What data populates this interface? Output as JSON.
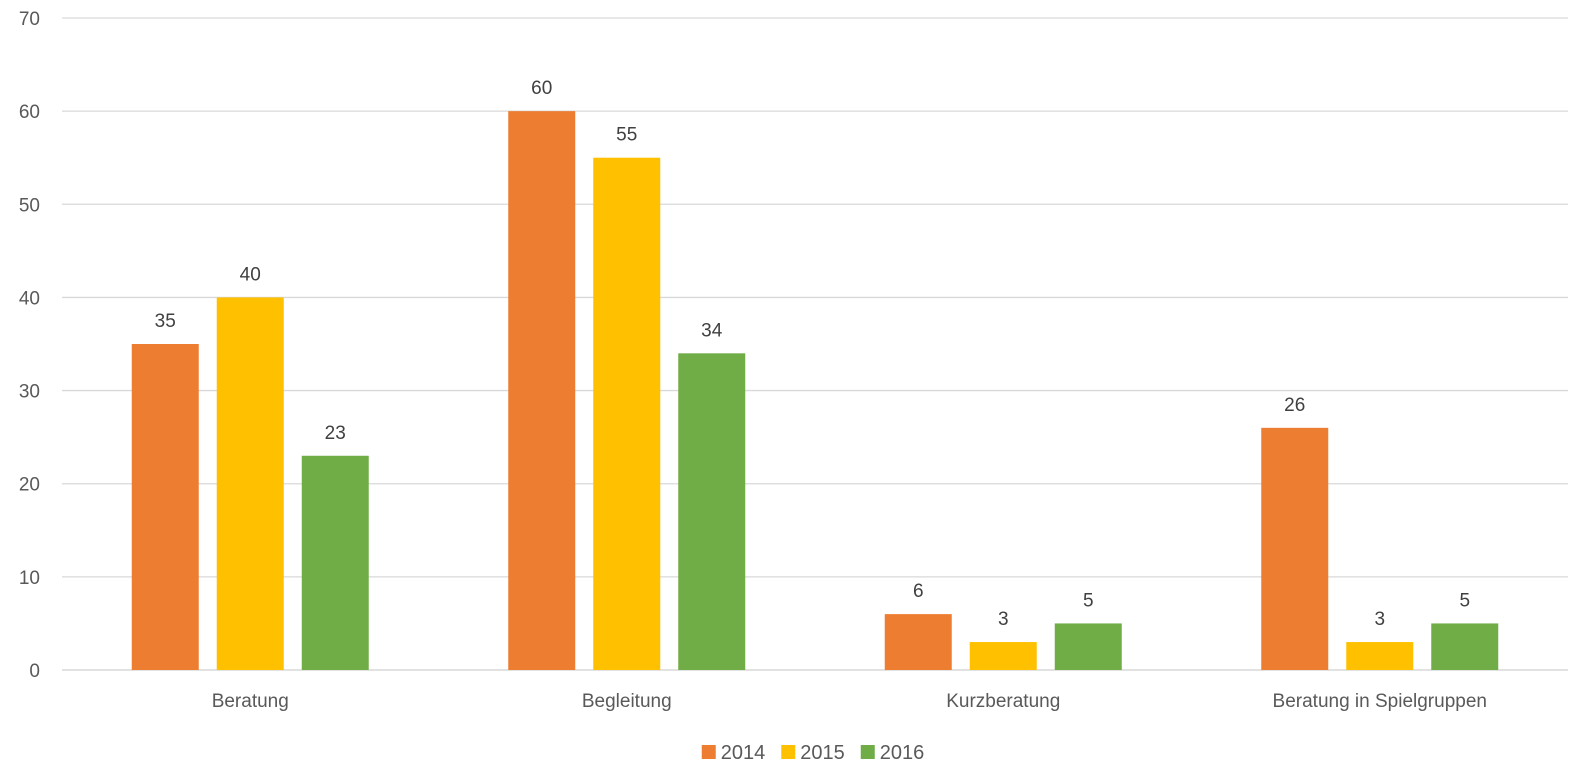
{
  "chart_data": {
    "type": "bar",
    "title": "",
    "xlabel": "",
    "ylabel": "",
    "categories": [
      "Beratung",
      "Begleitung",
      "Kurzberatung",
      "Beratung in Spielgruppen"
    ],
    "series": [
      {
        "name": "2014",
        "color": "#ED7D31",
        "values": [
          35,
          60,
          6,
          26
        ]
      },
      {
        "name": "2015",
        "color": "#FFC000",
        "values": [
          40,
          55,
          3,
          3
        ]
      },
      {
        "name": "2016",
        "color": "#70AD47",
        "values": [
          23,
          34,
          5,
          5
        ]
      }
    ],
    "ylim": [
      0,
      70
    ],
    "yticks": [
      0,
      10,
      20,
      30,
      40,
      50,
      60,
      70
    ],
    "grid": true,
    "data_labels": true,
    "legend_position": "bottom-center"
  }
}
